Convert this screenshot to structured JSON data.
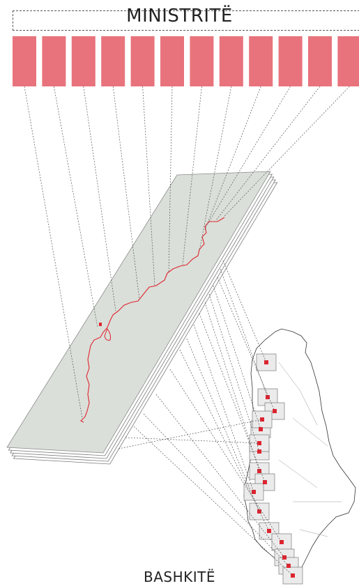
{
  "header": {
    "title": "MINISTRITË"
  },
  "footer": {
    "title": "BASHKITË"
  },
  "ministries_count": 12,
  "municipalities_count": 16,
  "colors": {
    "ministry_box": "#e8737c",
    "coast_line": "#e0242f",
    "plane_fill": "#dadfd9",
    "municipality_fill": "#ebebeb",
    "marker": "#e0242f"
  }
}
